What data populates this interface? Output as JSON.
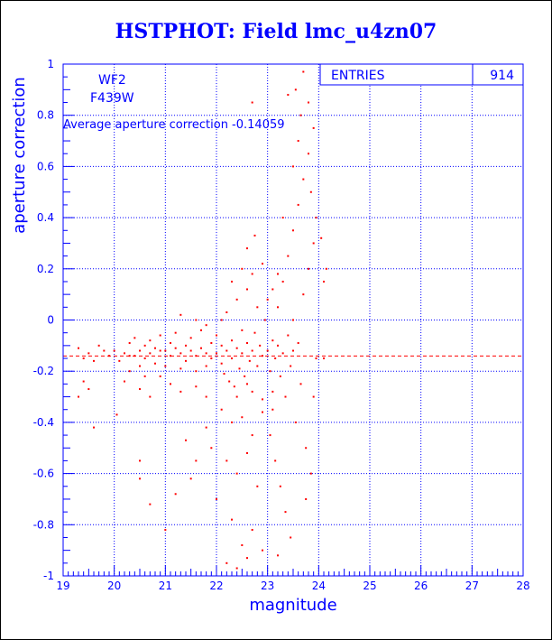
{
  "title": "HSTPHOT: Field lmc_u4zn07",
  "chart_data": {
    "type": "scatter",
    "title": "HSTPHOT: Field lmc_u4zn07",
    "xlabel": "magnitude",
    "ylabel": "aperture correction",
    "xlim": [
      19,
      28
    ],
    "ylim": [
      -1,
      1
    ],
    "x_ticks": [
      "19",
      "20",
      "21",
      "22",
      "23",
      "24",
      "25",
      "26",
      "27",
      "28"
    ],
    "y_ticks": [
      "-1",
      "-0.8",
      "-0.6",
      "-0.4",
      "-0.2",
      "0",
      "0.2",
      "0.4",
      "0.6",
      "0.8",
      "1"
    ],
    "grid": true,
    "annotations": {
      "chip": "WF2",
      "filter": "F439W",
      "average_text": "Average aperture correction  -0.14059"
    },
    "stats": {
      "label": "ENTRIES",
      "value": "914"
    },
    "reference_line": {
      "y": -0.14059,
      "style": "dashed"
    },
    "colors": {
      "points": "#ff0000",
      "axes": "#0000ff",
      "title": "#0000ff"
    },
    "series": [
      {
        "points": [
          [
            19.3,
            -0.11
          ],
          [
            19.4,
            -0.15
          ],
          [
            19.5,
            -0.13
          ],
          [
            19.6,
            -0.16
          ],
          [
            19.7,
            -0.1
          ],
          [
            19.8,
            -0.12
          ],
          [
            19.9,
            -0.14
          ],
          [
            19.4,
            -0.24
          ],
          [
            19.5,
            -0.27
          ],
          [
            19.3,
            -0.3
          ],
          [
            19.6,
            -0.42
          ],
          [
            20.0,
            -0.12
          ],
          [
            20.05,
            -0.37
          ],
          [
            20.1,
            -0.16
          ],
          [
            20.2,
            -0.13
          ],
          [
            20.3,
            -0.09
          ],
          [
            20.3,
            -0.2
          ],
          [
            20.4,
            -0.14
          ],
          [
            20.4,
            -0.07
          ],
          [
            20.5,
            -0.12
          ],
          [
            20.5,
            -0.18
          ],
          [
            20.6,
            -0.1
          ],
          [
            20.6,
            -0.15
          ],
          [
            20.7,
            -0.08
          ],
          [
            20.7,
            -0.13
          ],
          [
            20.8,
            -0.11
          ],
          [
            20.8,
            -0.17
          ],
          [
            20.9,
            -0.12
          ],
          [
            20.9,
            -0.06
          ],
          [
            20.2,
            -0.24
          ],
          [
            20.5,
            -0.27
          ],
          [
            20.7,
            -0.3
          ],
          [
            20.5,
            -0.55
          ],
          [
            20.5,
            -0.62
          ],
          [
            20.7,
            -0.72
          ],
          [
            20.3,
            -0.14
          ],
          [
            20.6,
            -0.22
          ],
          [
            20.9,
            -0.22
          ],
          [
            21.0,
            -0.12
          ],
          [
            21.0,
            -0.18
          ],
          [
            21.1,
            -0.09
          ],
          [
            21.1,
            -0.14
          ],
          [
            21.2,
            -0.11
          ],
          [
            21.2,
            -0.05
          ],
          [
            21.3,
            -0.13
          ],
          [
            21.3,
            -0.19
          ],
          [
            21.4,
            -0.1
          ],
          [
            21.4,
            -0.16
          ],
          [
            21.5,
            -0.12
          ],
          [
            21.5,
            -0.07
          ],
          [
            21.6,
            -0.14
          ],
          [
            21.6,
            -0.2
          ],
          [
            21.7,
            -0.11
          ],
          [
            21.7,
            -0.04
          ],
          [
            21.8,
            -0.13
          ],
          [
            21.8,
            -0.18
          ],
          [
            21.9,
            -0.09
          ],
          [
            21.9,
            -0.15
          ],
          [
            21.1,
            -0.25
          ],
          [
            21.3,
            -0.28
          ],
          [
            21.6,
            -0.26
          ],
          [
            21.8,
            -0.3
          ],
          [
            21.4,
            -0.47
          ],
          [
            21.6,
            -0.55
          ],
          [
            21.8,
            -0.42
          ],
          [
            21.2,
            -0.68
          ],
          [
            21.0,
            -0.82
          ],
          [
            21.5,
            -0.62
          ],
          [
            21.9,
            -0.5
          ],
          [
            21.3,
            0.02
          ],
          [
            21.6,
            0.0
          ],
          [
            21.8,
            -0.02
          ],
          [
            22.0,
            -0.13
          ],
          [
            22.0,
            -0.06
          ],
          [
            22.1,
            -0.17
          ],
          [
            22.1,
            -0.1
          ],
          [
            22.15,
            -0.21
          ],
          [
            22.2,
            -0.12
          ],
          [
            22.2,
            0.03
          ],
          [
            22.25,
            -0.24
          ],
          [
            22.3,
            -0.08
          ],
          [
            22.3,
            -0.15
          ],
          [
            22.35,
            -0.26
          ],
          [
            22.4,
            -0.11
          ],
          [
            22.4,
            0.08
          ],
          [
            22.45,
            -0.19
          ],
          [
            22.5,
            -0.13
          ],
          [
            22.5,
            -0.04
          ],
          [
            22.55,
            -0.22
          ],
          [
            22.6,
            -0.09
          ],
          [
            22.6,
            0.12
          ],
          [
            22.65,
            -0.16
          ],
          [
            22.7,
            -0.12
          ],
          [
            22.7,
            -0.28
          ],
          [
            22.75,
            -0.05
          ],
          [
            22.8,
            -0.18
          ],
          [
            22.8,
            0.05
          ],
          [
            22.85,
            -0.1
          ],
          [
            22.9,
            -0.14
          ],
          [
            22.9,
            -0.31
          ],
          [
            22.95,
            0.0
          ],
          [
            22.1,
            -0.35
          ],
          [
            22.3,
            -0.4
          ],
          [
            22.5,
            -0.38
          ],
          [
            22.7,
            -0.45
          ],
          [
            22.9,
            -0.36
          ],
          [
            22.2,
            -0.55
          ],
          [
            22.4,
            -0.6
          ],
          [
            22.6,
            -0.52
          ],
          [
            22.8,
            -0.65
          ],
          [
            22.0,
            -0.7
          ],
          [
            22.3,
            -0.78
          ],
          [
            22.5,
            -0.88
          ],
          [
            22.7,
            -0.82
          ],
          [
            22.2,
            -0.95
          ],
          [
            22.4,
            -0.97
          ],
          [
            22.6,
            -0.93
          ],
          [
            22.9,
            -0.9
          ],
          [
            22.3,
            0.15
          ],
          [
            22.5,
            0.2
          ],
          [
            22.7,
            0.18
          ],
          [
            22.9,
            0.22
          ],
          [
            22.6,
            0.28
          ],
          [
            22.75,
            0.33
          ],
          [
            22.7,
            0.85
          ],
          [
            22.4,
            -0.3
          ],
          [
            22.6,
            -0.25
          ],
          [
            22.1,
            0.0
          ],
          [
            23.0,
            -0.12
          ],
          [
            23.05,
            -0.2
          ],
          [
            23.1,
            -0.08
          ],
          [
            23.1,
            -0.28
          ],
          [
            23.15,
            -0.15
          ],
          [
            23.2,
            -0.1
          ],
          [
            23.2,
            0.05
          ],
          [
            23.25,
            -0.22
          ],
          [
            23.3,
            -0.13
          ],
          [
            23.3,
            0.15
          ],
          [
            23.35,
            -0.3
          ],
          [
            23.4,
            -0.06
          ],
          [
            23.4,
            0.25
          ],
          [
            23.45,
            -0.18
          ],
          [
            23.5,
            -0.12
          ],
          [
            23.5,
            0.35
          ],
          [
            23.55,
            -0.4
          ],
          [
            23.6,
            -0.09
          ],
          [
            23.6,
            0.45
          ],
          [
            23.65,
            -0.25
          ],
          [
            23.7,
            0.1
          ],
          [
            23.7,
            0.55
          ],
          [
            23.75,
            -0.5
          ],
          [
            23.8,
            0.2
          ],
          [
            23.8,
            0.65
          ],
          [
            23.85,
            -0.6
          ],
          [
            23.9,
            0.3
          ],
          [
            23.9,
            0.75
          ],
          [
            23.95,
            -0.15
          ],
          [
            23.05,
            -0.45
          ],
          [
            23.15,
            -0.55
          ],
          [
            23.25,
            -0.65
          ],
          [
            23.35,
            -0.75
          ],
          [
            23.45,
            -0.85
          ],
          [
            23.2,
            -0.92
          ],
          [
            23.1,
            -0.35
          ],
          [
            23.3,
            0.4
          ],
          [
            23.5,
            0.6
          ],
          [
            23.6,
            0.7
          ],
          [
            23.65,
            0.8
          ],
          [
            23.7,
            0.97
          ],
          [
            23.4,
            0.88
          ],
          [
            23.55,
            0.9
          ],
          [
            23.8,
            0.85
          ],
          [
            23.85,
            0.5
          ],
          [
            23.95,
            0.4
          ],
          [
            23.9,
            -0.3
          ],
          [
            23.75,
            -0.7
          ],
          [
            23.5,
            0.0
          ],
          [
            23.0,
            0.08
          ],
          [
            23.1,
            0.12
          ],
          [
            23.2,
            0.18
          ],
          [
            24.05,
            0.32
          ],
          [
            24.1,
            0.15
          ],
          [
            24.15,
            0.2
          ],
          [
            24.1,
            -0.15
          ]
        ]
      }
    ]
  }
}
